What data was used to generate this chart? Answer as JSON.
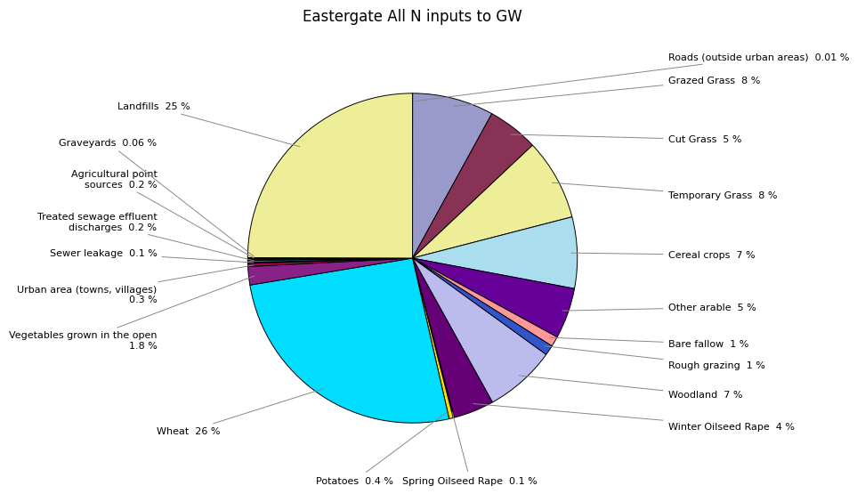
{
  "title": "Eastergate All N inputs to GW",
  "slices": [
    {
      "label": "Roads (outside urban areas)  0.01 %",
      "value": 0.01,
      "color": "#c8c8c8"
    },
    {
      "label": "Grazed Grass  8 %",
      "value": 8,
      "color": "#9999dd"
    },
    {
      "label": "Cut Grass  5 %",
      "value": 5,
      "color": "#883355"
    },
    {
      "label": "Temporary Grass  8 %",
      "value": 8,
      "color": "#eeeeaa"
    },
    {
      "label": "Cereal crops  7 %",
      "value": 7,
      "color": "#aaddee"
    },
    {
      "label": "Other arable  5 %",
      "value": 5,
      "color": "#660099"
    },
    {
      "label": "Bare fallow  1 %",
      "value": 1,
      "color": "#ff8888"
    },
    {
      "label": "Rough grazing  1 %",
      "value": 1,
      "color": "#3355bb"
    },
    {
      "label": "Woodland  7 %",
      "value": 7,
      "color": "#aaaaee"
    },
    {
      "label": "Winter Oilseed Rape  4 %",
      "value": 4,
      "color": "#660088"
    },
    {
      "label": "Spring Oilseed Rape  0.1 %",
      "value": 0.1,
      "color": "#bbbbee"
    },
    {
      "label": "Potatoes  0.4 %",
      "value": 0.4,
      "color": "#ffdd00"
    },
    {
      "label": "Wheat  26 %",
      "value": 26,
      "color": "#00ddff"
    },
    {
      "label": "Vegetables grown in the open\n1.8 %",
      "value": 1.8,
      "color": "#882299"
    },
    {
      "label": "Urban area (towns, villages)\n0.3 %",
      "value": 0.3,
      "color": "#aa0055"
    },
    {
      "label": "Sewer leakage  0.1 %",
      "value": 0.1,
      "color": "#880000"
    },
    {
      "label": "Treated sewage effluent\ndischarges  0.2 %",
      "value": 0.2,
      "color": "#007777"
    },
    {
      "label": "Agricultural point\nsources  0.2 %",
      "value": 0.2,
      "color": "#220044"
    },
    {
      "label": "Graveyards  0.06 %",
      "value": 0.06,
      "color": "#333300"
    },
    {
      "label": "Landfills  25 %",
      "value": 25,
      "color": "#eeee99"
    }
  ],
  "background_color": "#ffffff",
  "title_fontsize": 12,
  "label_fontsize": 8.0
}
